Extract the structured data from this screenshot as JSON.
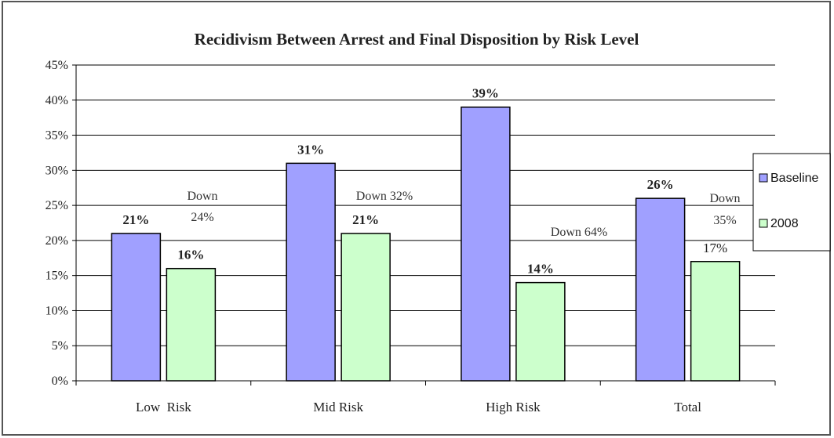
{
  "chart_data": {
    "type": "bar",
    "title": "Recidivism Between Arrest and Final Disposition by Risk Level",
    "categories": [
      "Low  Risk",
      "Mid Risk",
      "High Risk",
      "Total"
    ],
    "series": [
      {
        "name": "Baseline",
        "values": [
          21,
          31,
          39,
          26
        ],
        "labels": [
          "21%",
          "31%",
          "39%",
          "26%"
        ],
        "label_bold": [
          true,
          true,
          true,
          true
        ],
        "color": "#a0a0ff"
      },
      {
        "name": "2008",
        "values": [
          16,
          21,
          14,
          17
        ],
        "labels": [
          "16%",
          "21%",
          "14%",
          "17%"
        ],
        "label_bold": [
          true,
          true,
          true,
          false
        ],
        "color": "#ccffcc"
      }
    ],
    "ylim": [
      0,
      45
    ],
    "yticks": [
      0,
      5,
      10,
      15,
      20,
      25,
      30,
      35,
      40,
      45
    ],
    "ytick_labels": [
      "0%",
      "5%",
      "10%",
      "15%",
      "20%",
      "25%",
      "30%",
      "35%",
      "40%",
      "45%"
    ],
    "grid": true,
    "legend_position": "right",
    "annotations": [
      {
        "category": "Low  Risk",
        "lines": [
          "Down",
          "24%"
        ]
      },
      {
        "category": "Mid Risk",
        "lines": [
          "Down 32%"
        ]
      },
      {
        "category": "High Risk",
        "lines": [
          "Down 64%"
        ]
      },
      {
        "category": "Total",
        "lines": [
          "Down",
          "35%"
        ]
      }
    ],
    "xlabel": "",
    "ylabel": ""
  }
}
